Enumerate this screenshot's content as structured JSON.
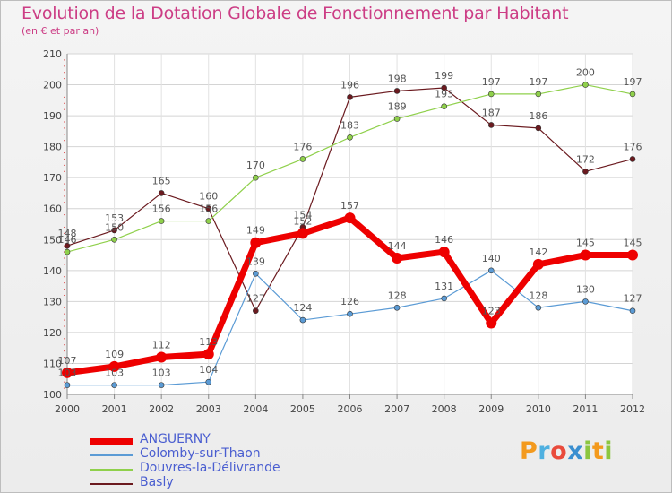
{
  "chart_data": {
    "type": "line",
    "title": "Evolution de la Dotation Globale de Fonctionnement par Habitant",
    "subtitle": "(en € et par an)",
    "xlabel": "",
    "ylabel": "",
    "ylim": [
      100,
      210
    ],
    "yticks": [
      100,
      110,
      120,
      130,
      140,
      150,
      160,
      170,
      180,
      190,
      200,
      210
    ],
    "categories": [
      "2000",
      "2001",
      "2002",
      "2003",
      "2004",
      "2005",
      "2006",
      "2007",
      "2008",
      "2009",
      "2010",
      "2011",
      "2012"
    ],
    "grid": true,
    "legend_position": "bottom-left",
    "series": [
      {
        "name": "Basly",
        "color": "#6b1a1f",
        "values": [
          148,
          153,
          165,
          160,
          127,
          154,
          196,
          198,
          199,
          187,
          186,
          172,
          176
        ]
      },
      {
        "name": "Douvres-la-Délivrande",
        "color": "#8fd04b",
        "values": [
          146,
          150,
          156,
          156,
          170,
          176,
          183,
          189,
          193,
          197,
          197,
          200,
          197
        ]
      },
      {
        "name": "Colomby-sur-Thaon",
        "color": "#5b9bd5",
        "values": [
          103,
          103,
          103,
          104,
          139,
          124,
          126,
          128,
          131,
          140,
          128,
          130,
          127
        ]
      },
      {
        "name": "ANGUERNY",
        "color": "#ee0000",
        "values": [
          107,
          109,
          112,
          113,
          149,
          152,
          157,
          144,
          146,
          123,
          142,
          145,
          145
        ]
      }
    ],
    "legend": [
      "ANGUERNY",
      "Colomby-sur-Thaon",
      "Douvres-la-Délivrande",
      "Basly"
    ]
  },
  "logo": {
    "text": "Proxiti",
    "letters": [
      "P",
      "r",
      "o",
      "x",
      "i",
      "t",
      "i"
    ],
    "colors": [
      "#f39a1e",
      "#4fb0e0",
      "#e94b3c",
      "#3a8fd0",
      "#8cc63f",
      "#f39a1e",
      "#8cc63f"
    ]
  }
}
